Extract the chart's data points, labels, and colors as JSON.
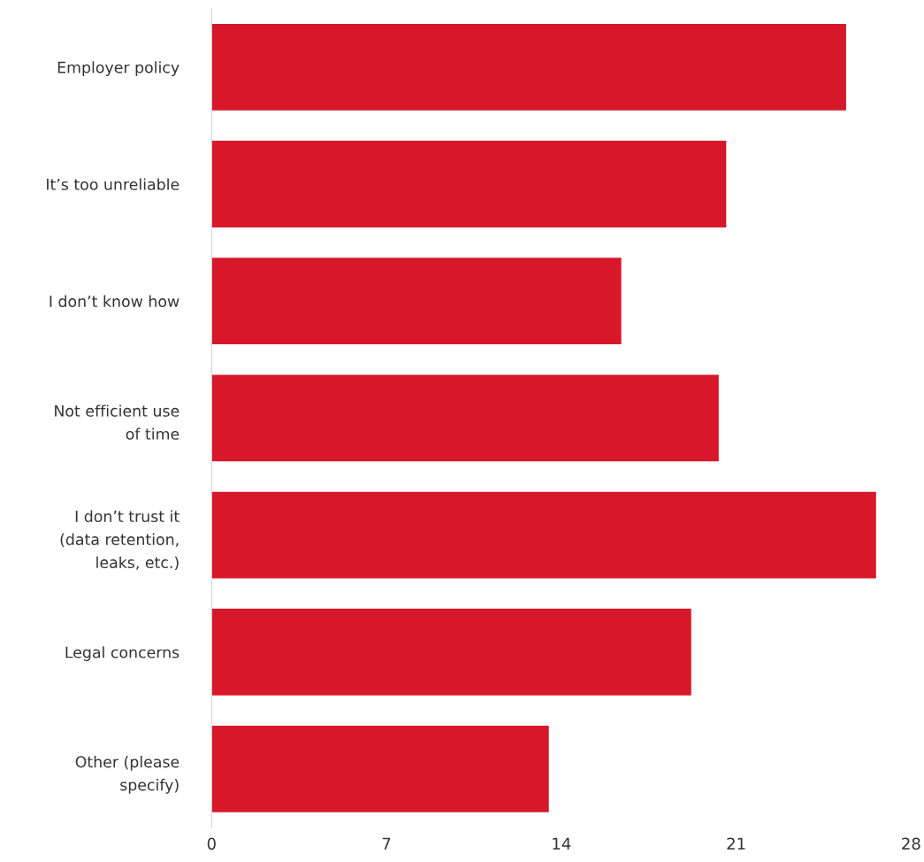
{
  "chart_data": {
    "type": "bar",
    "orientation": "horizontal",
    "categories": [
      "Employer policy",
      "It’s too unreliable",
      "I don’t know how",
      "Not efficient use\nof time",
      "I don’t trust it\n(data retention,\nleaks, etc.)",
      "Legal concerns",
      "Other (please\nspecify)"
    ],
    "values": [
      25.4,
      20.6,
      16.4,
      20.3,
      26.6,
      19.2,
      13.5
    ],
    "color": "#d7182a",
    "xlim": [
      0,
      28
    ],
    "xticks": [
      0,
      7,
      14,
      21,
      28
    ],
    "grid": false,
    "legend": false
  }
}
